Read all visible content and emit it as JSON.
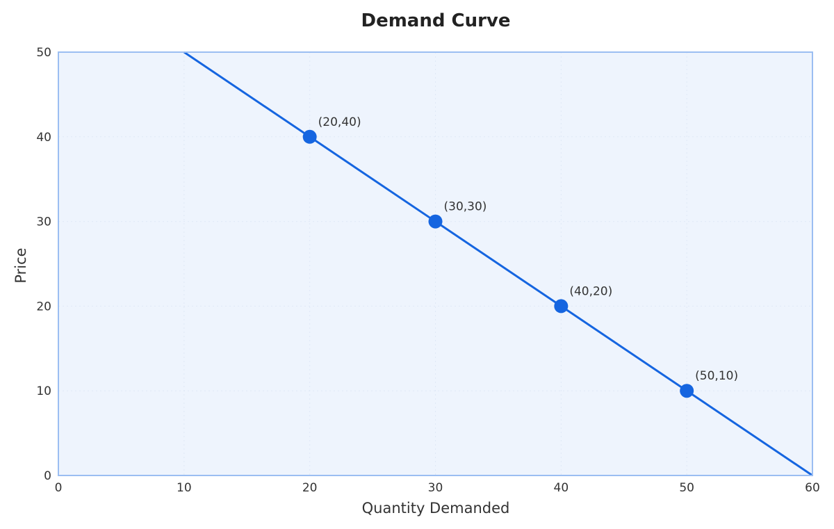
{
  "colors": {
    "line": "#1565e0",
    "point": "#1565e0",
    "plot_bg": "#eef4fd",
    "plot_border": "#9bbef2",
    "grid": "#dfe8f6"
  },
  "chart_data": {
    "type": "line",
    "title": "Demand Curve",
    "xlabel": "Quantity Demanded",
    "ylabel": "Price",
    "xlim": [
      0,
      60
    ],
    "ylim": [
      0,
      50
    ],
    "xticks": [
      0,
      10,
      20,
      30,
      40,
      50,
      60
    ],
    "yticks": [
      0,
      10,
      20,
      30,
      40,
      50
    ],
    "grid": true,
    "series": [
      {
        "x": [
          10,
          60
        ],
        "y": [
          50,
          0
        ],
        "style": "line"
      },
      {
        "x": [
          20,
          30,
          40,
          50
        ],
        "y": [
          40,
          30,
          20,
          10
        ],
        "labels": [
          "(20,40)",
          "(30,30)",
          "(40,20)",
          "(50,10)"
        ],
        "style": "markers"
      }
    ]
  }
}
